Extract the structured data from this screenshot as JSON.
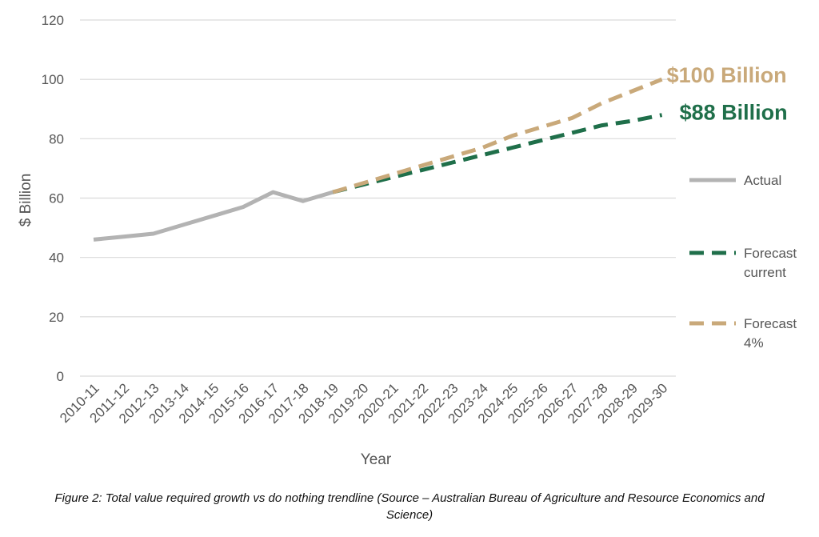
{
  "colors": {
    "actual": "#b3b3b3",
    "forecast_current": "#1f6f4a",
    "forecast_4pct": "#c9a97a",
    "grid": "#d9d9d9",
    "text": "#555555"
  },
  "chart_data": {
    "type": "line",
    "title": "",
    "xlabel": "Year",
    "ylabel": "$ Billion",
    "ylim": [
      0,
      120
    ],
    "yticks": [
      0,
      20,
      40,
      60,
      80,
      100,
      120
    ],
    "grid": true,
    "legend_position": "right",
    "categories": [
      "2010-11",
      "2011-12",
      "2012-13",
      "2013-14",
      "2014-15",
      "2015-16",
      "2016-17",
      "2017-18",
      "2018-19",
      "2019-20",
      "2020-21",
      "2021-22",
      "2022-23",
      "2023-24",
      "2024-25",
      "2025-26",
      "2026-27",
      "2027-28",
      "2028-29",
      "2029-30"
    ],
    "series": [
      {
        "name": "Actual",
        "style": "solid",
        "color": "#b3b3b3",
        "values": [
          46,
          47,
          48,
          51,
          54,
          57,
          62,
          59,
          62,
          null,
          null,
          null,
          null,
          null,
          null,
          null,
          null,
          null,
          null,
          null
        ]
      },
      {
        "name": "Forecast current",
        "style": "dashed",
        "color": "#1f6f4a",
        "values": [
          null,
          null,
          null,
          null,
          null,
          null,
          null,
          null,
          62,
          64.5,
          67,
          69.5,
          72,
          74.5,
          77,
          79.5,
          82,
          84.5,
          86,
          88
        ]
      },
      {
        "name": "Forecast 4%",
        "style": "dashed",
        "color": "#c9a97a",
        "values": [
          null,
          null,
          null,
          null,
          null,
          null,
          null,
          null,
          62,
          65,
          68,
          71,
          74,
          77,
          81,
          84,
          87,
          92,
          96,
          100
        ]
      }
    ],
    "annotations": [
      {
        "text": "$100 Billion",
        "color": "#c9a97a"
      },
      {
        "text": "$88 Billion",
        "color": "#1f6f4a"
      }
    ],
    "legend": [
      {
        "lines": [
          "Actual"
        ]
      },
      {
        "lines": [
          "Forecast",
          "current"
        ]
      },
      {
        "lines": [
          "Forecast",
          "4%"
        ]
      }
    ]
  },
  "caption": {
    "line1": "Figure 2: Total value required growth vs do nothing trendline (Source – Australian Bureau of Agriculture and Resource Economics and",
    "line2": "Science)"
  }
}
